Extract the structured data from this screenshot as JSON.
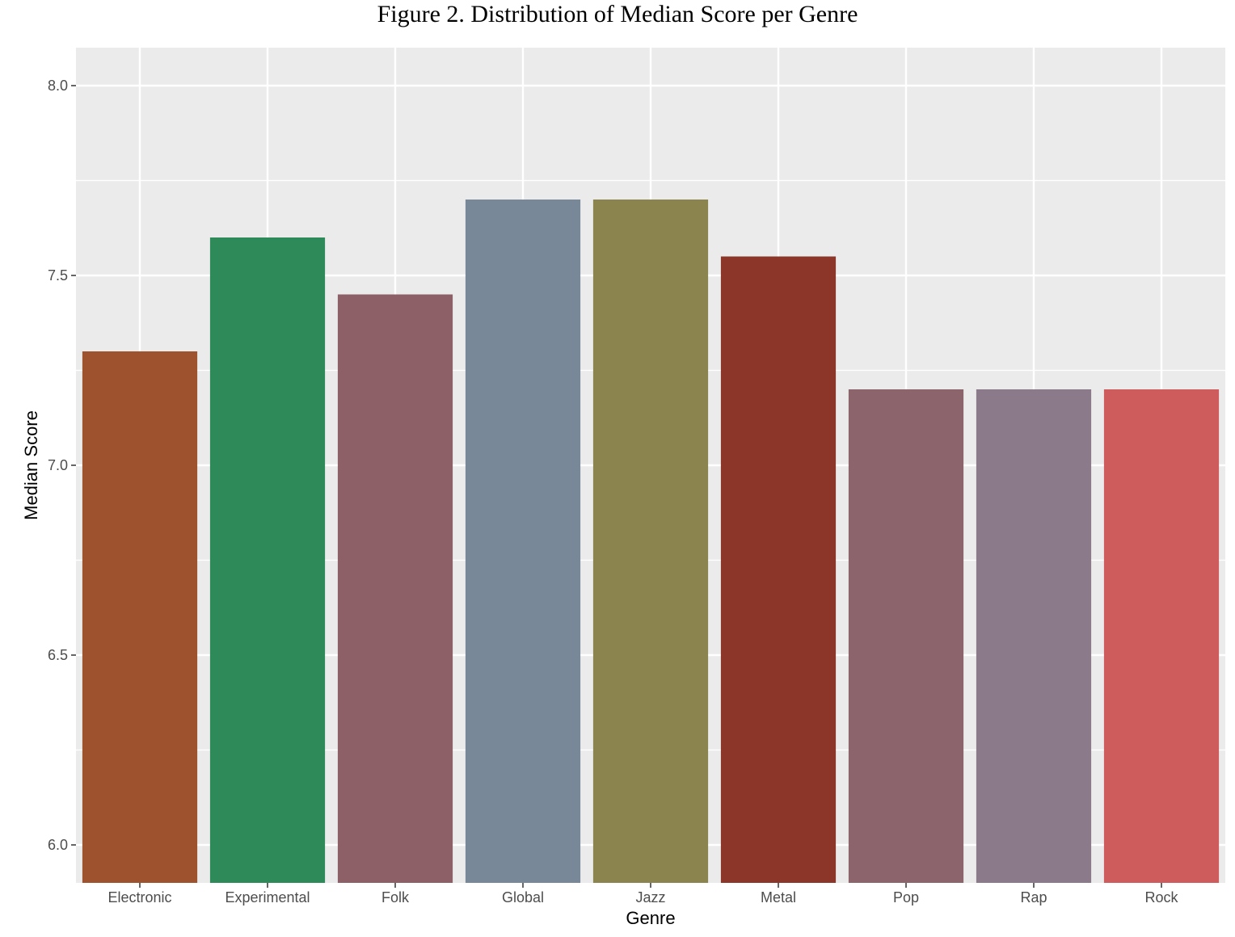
{
  "chart_data": {
    "type": "bar",
    "title": "Figure 2. Distribution of Median Score per Genre",
    "xlabel": "Genre",
    "ylabel": "Median Score",
    "categories": [
      "Electronic",
      "Experimental",
      "Folk",
      "Global",
      "Jazz",
      "Metal",
      "Pop",
      "Rap",
      "Rock"
    ],
    "values": [
      7.3,
      7.6,
      7.45,
      7.7,
      7.7,
      7.55,
      7.2,
      7.2,
      7.2
    ],
    "colors": [
      "#9f522e",
      "#2e8a58",
      "#8d5f66",
      "#788898",
      "#8b844e",
      "#8c3629",
      "#8c646c",
      "#8b7a89",
      "#cf5c5c"
    ],
    "ylim": [
      5.9,
      8.1
    ],
    "yticks": [
      6.0,
      6.5,
      7.0,
      7.5,
      8.0
    ],
    "ytick_labels": [
      "6.0",
      "6.5",
      "7.0",
      "7.5",
      "8.0"
    ],
    "grid": true,
    "panel_background": "#ebebeb",
    "grid_color": "#ffffff",
    "legend": "none"
  }
}
